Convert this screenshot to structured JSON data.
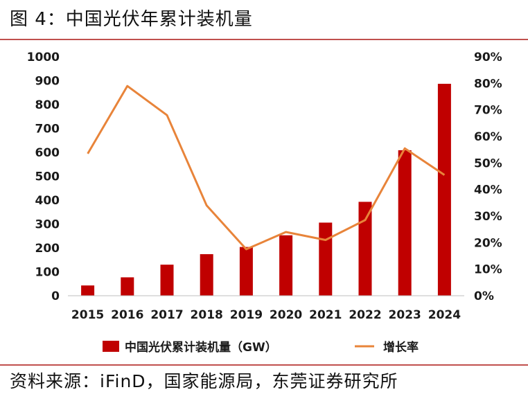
{
  "figure": {
    "title": "图 4：中国光伏年累计装机量",
    "source": "资料来源：iFinD，国家能源局，东莞证券研究所"
  },
  "colors": {
    "bar": "#c00000",
    "line": "#e8843a",
    "rule": "#c0504d"
  },
  "chart_data": {
    "type": "bar",
    "title": "中国光伏年累计装机量",
    "categories": [
      "2015",
      "2016",
      "2017",
      "2018",
      "2019",
      "2020",
      "2021",
      "2022",
      "2023",
      "2024"
    ],
    "series": [
      {
        "name": "中国光伏累计装机量（GW）",
        "type": "bar",
        "axis": "left",
        "values": [
          43,
          77,
          130,
          174,
          204,
          253,
          306,
          393,
          609,
          887
        ]
      },
      {
        "name": "增长率",
        "type": "line",
        "axis": "right",
        "values": [
          53.5,
          79.0,
          68.0,
          34.0,
          17.5,
          24.0,
          21.0,
          28.5,
          55.5,
          45.5
        ]
      }
    ],
    "ylim_left": [
      0,
      1000
    ],
    "yticks_left": [
      "0",
      "100",
      "200",
      "300",
      "400",
      "500",
      "600",
      "700",
      "800",
      "900",
      "1000"
    ],
    "ylim_right": [
      0,
      90
    ],
    "yticks_right": [
      "0%",
      "10%",
      "20%",
      "30%",
      "40%",
      "50%",
      "60%",
      "70%",
      "80%",
      "90%"
    ],
    "legend_position": "bottom"
  }
}
